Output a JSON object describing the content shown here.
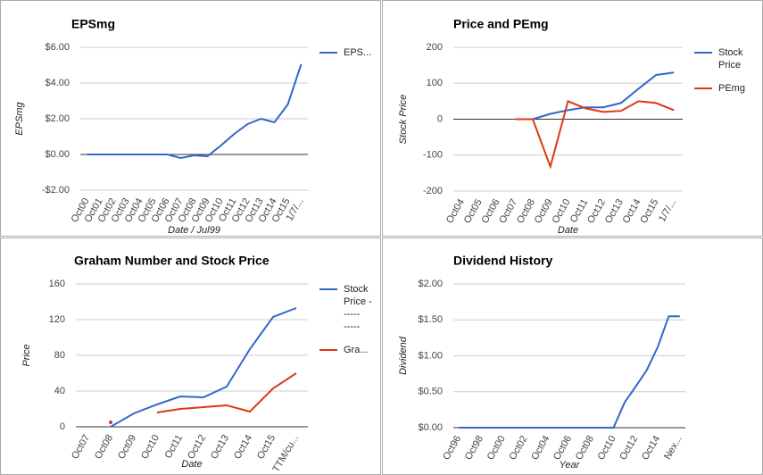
{
  "chart_data": [
    {
      "type": "line",
      "title": "EPSmg",
      "y_label": "EPSmg",
      "x_label": "Date / Jul99",
      "categories": [
        "Oct00",
        "Oct01",
        "Oct02",
        "Oct03",
        "Oct04",
        "Oct05",
        "Oct06",
        "Oct07",
        "Oct08",
        "Oct09",
        "Oct10",
        "Oct11",
        "Oct12",
        "Oct13",
        "Oct14",
        "Oct15",
        "1/7/..."
      ],
      "series": [
        {
          "name": "EPS...",
          "color": "#3366cc",
          "values": [
            0,
            0,
            0,
            0,
            0,
            0,
            0,
            -0.2,
            -0.05,
            -0.1,
            0.5,
            1.15,
            1.7,
            2.0,
            1.8,
            2.8,
            5.05
          ]
        }
      ],
      "ylim": [
        -2,
        6
      ],
      "yticks": [
        {
          "value": -2,
          "label": "-$2.00"
        },
        {
          "value": 0,
          "label": "$0.00"
        },
        {
          "value": 2,
          "label": "$2.00"
        },
        {
          "value": 4,
          "label": "$4.00"
        },
        {
          "value": 6,
          "label": "$6.00"
        }
      ],
      "grid": true,
      "legend": "right"
    },
    {
      "type": "line",
      "title": "Price and PEmg",
      "y_label": "Stock Price",
      "x_label": "Date",
      "categories": [
        "Oct04",
        "Oct05",
        "Oct06",
        "Oct07",
        "Oct08",
        "Oct09",
        "Oct10",
        "Oct11",
        "Oct12",
        "Oct13",
        "Oct14",
        "Oct15",
        "1/7/..."
      ],
      "series": [
        {
          "name": "Stock Price",
          "color": "#3366cc",
          "values": [
            null,
            null,
            null,
            null,
            0,
            15,
            25,
            33,
            33,
            45,
            85,
            123,
            130
          ]
        },
        {
          "name": "PEmg",
          "color": "#dc3912",
          "values": [
            null,
            null,
            null,
            0,
            0,
            -132,
            50,
            30,
            20,
            23,
            50,
            45,
            25
          ]
        }
      ],
      "ylim": [
        -200,
        200
      ],
      "yticks": [
        -200,
        -100,
        0,
        100,
        200
      ],
      "grid": true,
      "legend": "right"
    },
    {
      "type": "line",
      "title": "Graham Number and Stock Price",
      "y_label": "Price",
      "x_label": "Date",
      "categories": [
        "Oct07",
        "Oct08",
        "Oct09",
        "Oct10",
        "Oct11",
        "Oct12",
        "Oct13",
        "Oct14",
        "Oct15",
        "TTM/cu..."
      ],
      "series": [
        {
          "name": "Stock Price - ----- -----",
          "color": "#3366cc",
          "values": [
            null,
            0,
            15,
            25,
            34,
            33,
            45,
            87,
            123,
            133
          ]
        },
        {
          "name": "Gra...",
          "color": "#dc3912",
          "values": [
            null,
            5,
            null,
            16,
            20,
            22,
            24,
            17,
            43,
            60
          ]
        }
      ],
      "ylim": [
        0,
        160
      ],
      "yticks": [
        0,
        40,
        80,
        120,
        160
      ],
      "grid": true,
      "legend": "right"
    },
    {
      "type": "line",
      "title": "Dividend History",
      "y_label": "Dividend",
      "x_label": "Year",
      "categories": [
        "Oct96",
        null,
        "Oct98",
        null,
        "Oct00",
        null,
        "Oct02",
        null,
        "Oct04",
        null,
        "Oct06",
        null,
        "Oct08",
        null,
        "Oct10",
        null,
        "Oct12",
        null,
        "Oct14",
        null,
        "Nex..."
      ],
      "values": [
        0,
        0,
        0,
        0,
        0,
        0,
        0,
        0,
        0,
        0,
        0,
        0,
        0,
        0,
        0,
        0.35,
        0.57,
        0.8,
        1.12,
        1.55,
        1.55
      ],
      "color": "#3366cc",
      "ylim": [
        0,
        2
      ],
      "yticks": [
        {
          "value": 0,
          "label": "$0.00"
        },
        {
          "value": 0.5,
          "label": "$0.50"
        },
        {
          "value": 1,
          "label": "$1.00"
        },
        {
          "value": 1.5,
          "label": "$1.50"
        },
        {
          "value": 2,
          "label": "$2.00"
        }
      ],
      "grid": true
    }
  ]
}
